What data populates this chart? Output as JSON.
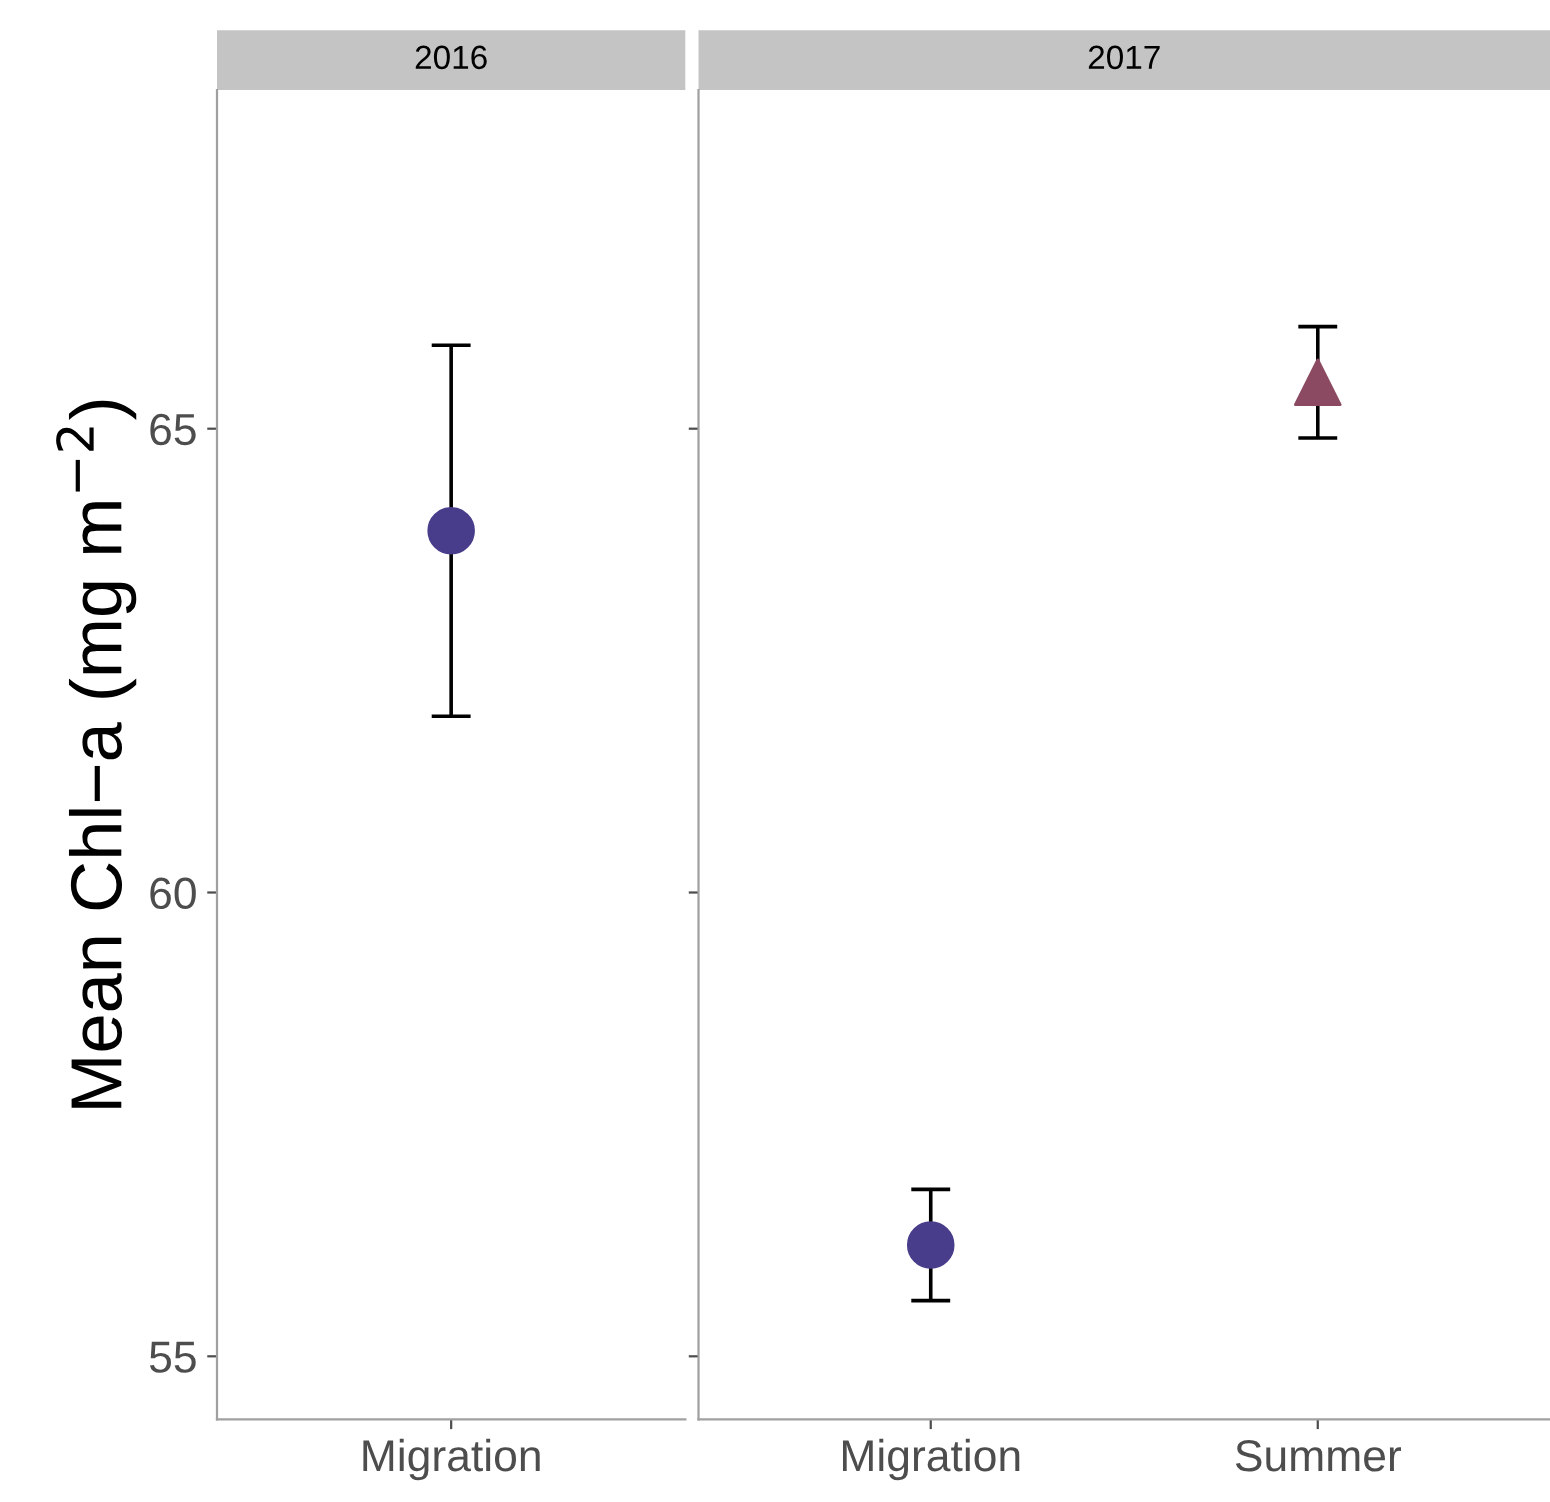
{
  "chart_data": [
    {
      "type": "scatter",
      "title": "2016",
      "ylabel": "Mean Chl−a (mg m$^{−2}$)",
      "categories": [
        "Migration"
      ],
      "ylim": [
        54.32,
        68.65
      ],
      "yticks": [
        55,
        60,
        65
      ],
      "grid": false,
      "series": [
        {
          "color": "#483d8b",
          "marker": "circle",
          "values": [
            63.9
          ],
          "errors": [
            2.0
          ]
        }
      ]
    },
    {
      "type": "scatter",
      "title": "2017",
      "categories": [
        "Migration",
        "Summer"
      ],
      "ylim": [
        54.32,
        68.65
      ],
      "yticks": [
        55,
        60,
        65
      ],
      "tick_labels": "x",
      "grid": false,
      "series": [
        {
          "color": "#483d8b",
          "marker": "circle",
          "values": [
            56.2,
            null
          ],
          "errors": [
            0.6,
            null
          ]
        },
        {
          "color": "#8b4a62",
          "marker": "triangle",
          "values": [
            null,
            65.5
          ],
          "errors": [
            null,
            0.6
          ]
        }
      ]
    }
  ]
}
